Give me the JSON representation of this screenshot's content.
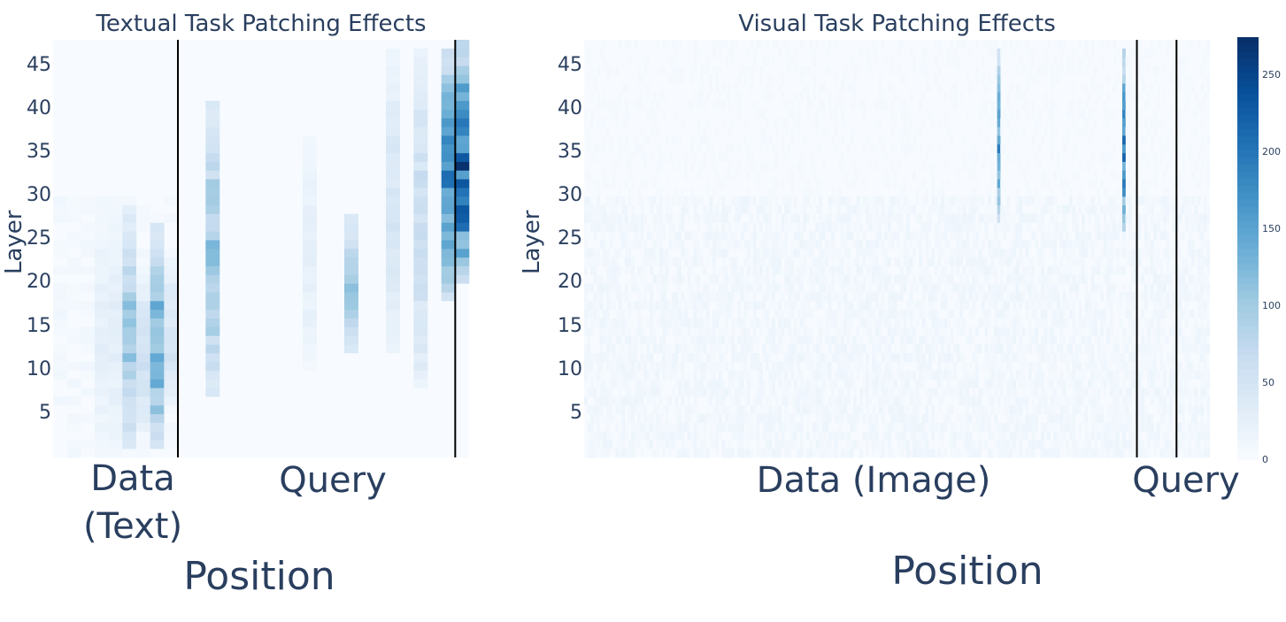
{
  "chart_data": [
    {
      "type": "heatmap",
      "title": "Textual Task Patching Effects",
      "ylabel": "Layer",
      "xlabel": "Position",
      "yticks": [
        45,
        40,
        35,
        30,
        25,
        20,
        15,
        10,
        5
      ],
      "ylim": [
        0,
        48
      ],
      "n_positions": 30,
      "regions": [
        {
          "label": "Data\n(Text)",
          "start": 0,
          "end": 9
        },
        {
          "label": "Query",
          "start": 9,
          "end": 29
        }
      ],
      "boundaries": [
        9,
        29
      ],
      "colorscale": "Blues",
      "zlim": [
        0,
        275
      ],
      "hotspots": [
        {
          "pos": 3,
          "layer_range": [
            0,
            28
          ],
          "peak": 30
        },
        {
          "pos": 4,
          "layer_range": [
            0,
            28
          ],
          "peak": 35
        },
        {
          "pos": 5,
          "layer_range": [
            1,
            28
          ],
          "peak": 125
        },
        {
          "pos": 6,
          "layer_range": [
            3,
            20
          ],
          "peak": 70
        },
        {
          "pos": 7,
          "layer_range": [
            1,
            26
          ],
          "peak": 175
        },
        {
          "pos": 8,
          "layer_range": [
            6,
            22
          ],
          "peak": 60
        },
        {
          "pos": 11,
          "layer_range": [
            7,
            40
          ],
          "peak": 130
        },
        {
          "pos": 18,
          "layer_range": [
            10,
            36
          ],
          "peak": 30
        },
        {
          "pos": 21,
          "layer_range": [
            12,
            27
          ],
          "peak": 120
        },
        {
          "pos": 24,
          "layer_range": [
            12,
            46
          ],
          "peak": 55
        },
        {
          "pos": 26,
          "layer_range": [
            8,
            46
          ],
          "peak": 75
        },
        {
          "pos": 28,
          "layer_range": [
            18,
            46
          ],
          "peak": 215
        },
        {
          "pos": 29,
          "layer_range": [
            20,
            47
          ],
          "peak": 275
        }
      ]
    },
    {
      "type": "heatmap",
      "title": "Visual Task Patching Effects",
      "ylabel": "Layer",
      "xlabel": "Position",
      "yticks": [
        45,
        40,
        35,
        30,
        25,
        20,
        15,
        10,
        5
      ],
      "ylim": [
        0,
        48
      ],
      "n_positions": 600,
      "regions": [
        {
          "label": "Data (Image)",
          "start": 0,
          "end": 530
        },
        {
          "label": "Query",
          "start": 530,
          "end": 568
        }
      ],
      "boundaries": [
        530,
        568
      ],
      "colorscale": "Blues",
      "zlim": [
        0,
        275
      ],
      "hotspots": [
        {
          "pos": 397,
          "layer_range": [
            27,
            46
          ],
          "peak": 200
        },
        {
          "pos": 518,
          "layer_range": [
            26,
            46
          ],
          "peak": 250
        }
      ],
      "colorbar": {
        "ticks": [
          250,
          200,
          150,
          100,
          50,
          0
        ]
      }
    }
  ]
}
